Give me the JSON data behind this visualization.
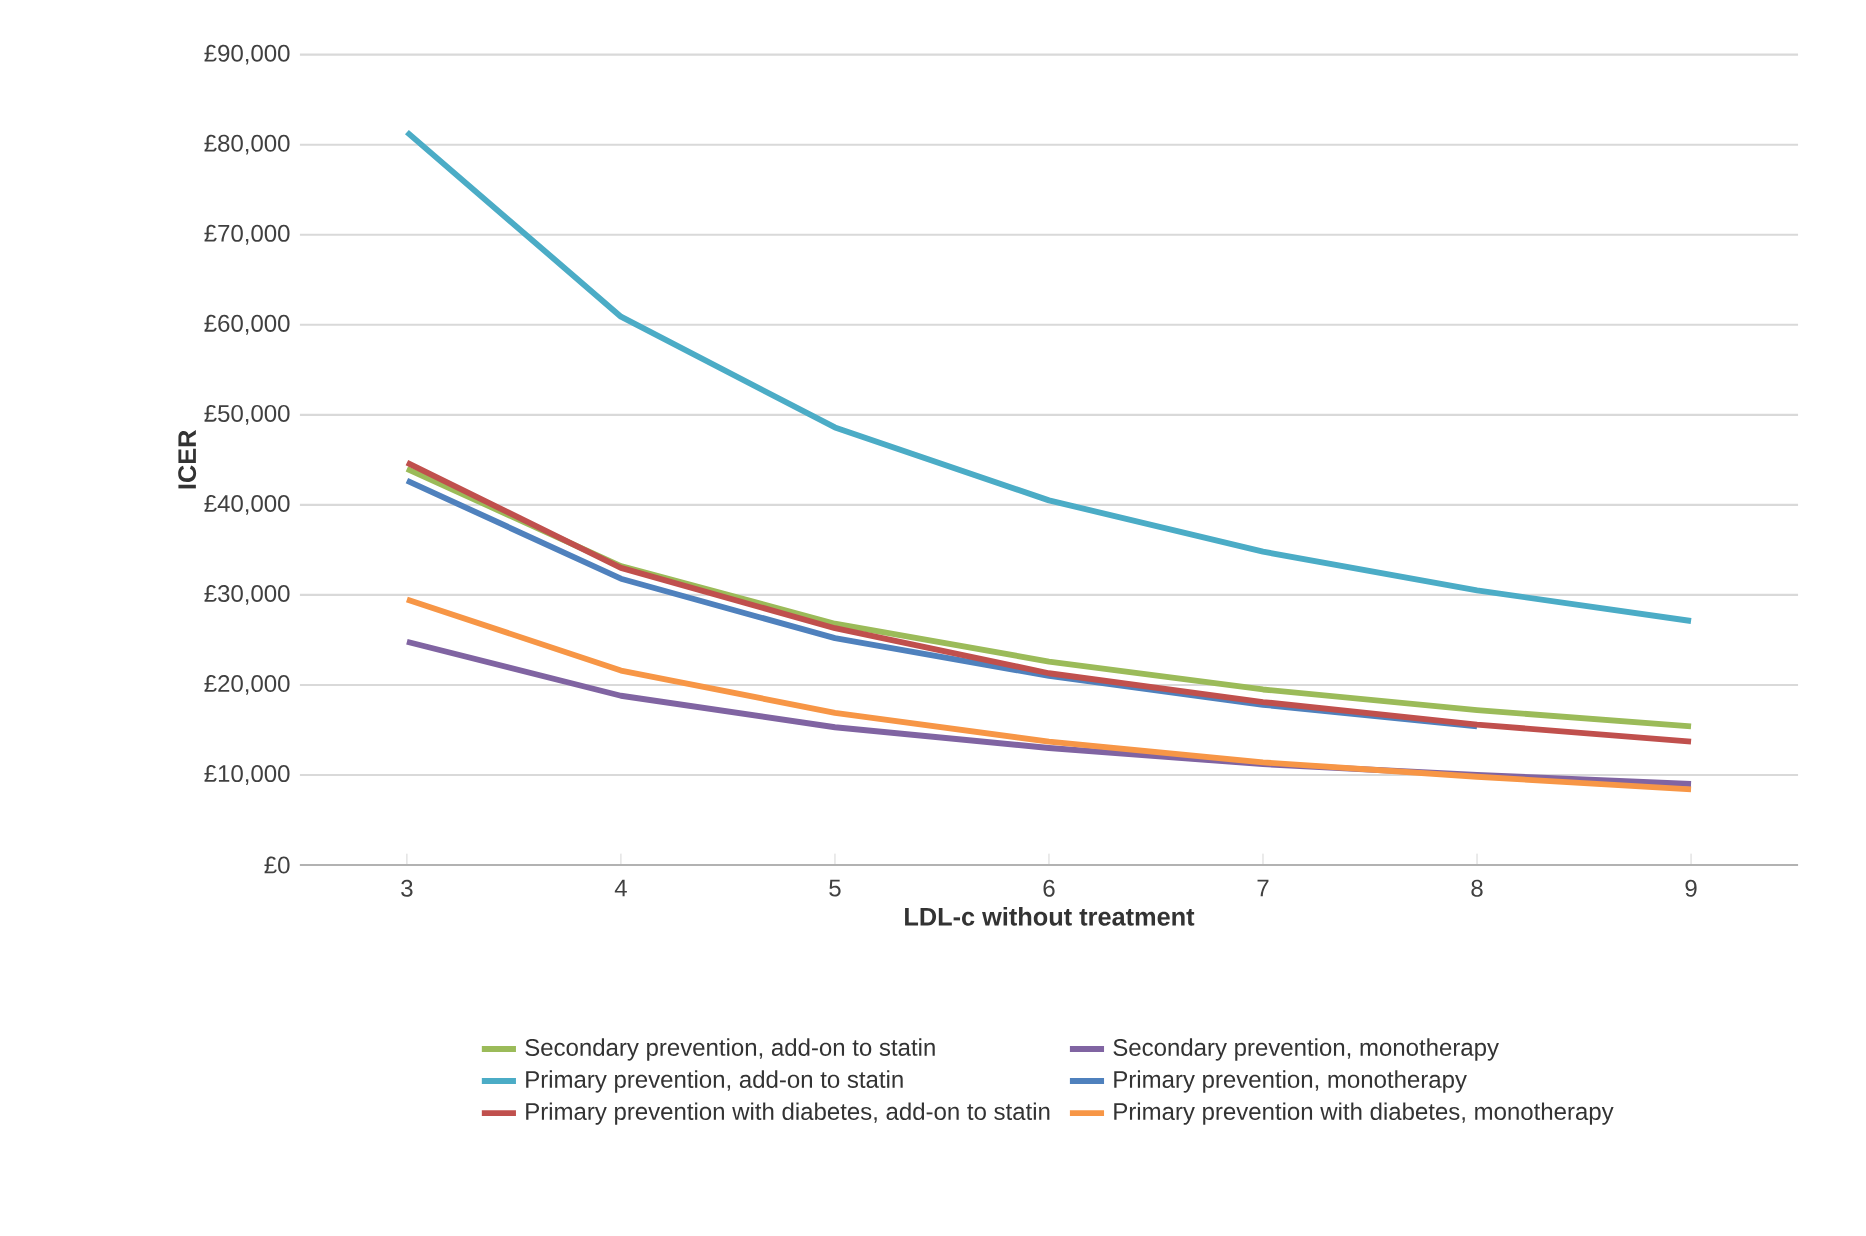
{
  "chart_data": {
    "type": "line",
    "xlabel": "LDL-c without treatment",
    "ylabel": "ICER",
    "x": [
      3,
      4,
      5,
      6,
      7,
      8,
      9
    ],
    "xlim": [
      2.5,
      9.5
    ],
    "xticks": [
      3,
      4,
      5,
      6,
      7,
      8,
      9
    ],
    "ylim": [
      0,
      90000
    ],
    "yticks": [
      {
        "value": 0,
        "label": "£0"
      },
      {
        "value": 10000,
        "label": "£10,000"
      },
      {
        "value": 20000,
        "label": "£20,000"
      },
      {
        "value": 30000,
        "label": "£30,000"
      },
      {
        "value": 40000,
        "label": "£40,000"
      },
      {
        "value": 50000,
        "label": "£50,000"
      },
      {
        "value": 60000,
        "label": "£60,000"
      },
      {
        "value": 70000,
        "label": "£70,000"
      },
      {
        "value": 80000,
        "label": "£80,000"
      },
      {
        "value": 90000,
        "label": "£90,000"
      }
    ],
    "grid": "y",
    "legend": "bottom",
    "marker": "none",
    "line_style": "solid",
    "series": [
      {
        "name": "Secondary prevention,  add-on to statin",
        "color": "#9bbb59",
        "values": [
          44000,
          33200,
          26800,
          22600,
          19500,
          17200,
          15400
        ]
      },
      {
        "name": "Secondary prevention, monotherapy",
        "color": "#8064a2",
        "values": [
          24800,
          18800,
          15300,
          13000,
          11200,
          10000,
          9000
        ]
      },
      {
        "name": "Primary prevention, add-on to statin",
        "color": "#4bacc6",
        "values": [
          81400,
          60900,
          48600,
          40500,
          34800,
          30500,
          27100
        ]
      },
      {
        "name": "Primary prevention, monotherapy",
        "color": "#4f81bd",
        "values": [
          42700,
          31800,
          25200,
          21000,
          17800,
          15400,
          null
        ]
      },
      {
        "name": "Primary prevention with diabetes, add-on to statin",
        "color": "#c0504d",
        "values": [
          44700,
          33000,
          26300,
          21300,
          18100,
          15600,
          13700
        ]
      },
      {
        "name": "Primary prevention with diabetes, monotherapy",
        "color": "#f79646",
        "values": [
          29500,
          21600,
          16900,
          13700,
          11400,
          9800,
          8400
        ]
      }
    ]
  }
}
